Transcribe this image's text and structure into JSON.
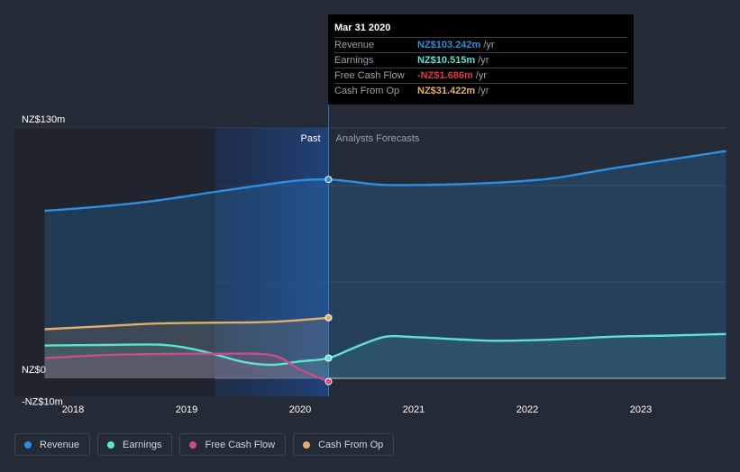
{
  "chart_data": {
    "type": "area",
    "x_ticks": [
      "2018",
      "2019",
      "2020",
      "2021",
      "2022",
      "2023"
    ],
    "y_ticks": [
      {
        "value": 130,
        "label": "NZ$130m"
      },
      {
        "value": 0,
        "label": "NZ$0"
      },
      {
        "value": -10,
        "label": "-NZ$10m"
      }
    ],
    "ylim": [
      -10,
      130
    ],
    "divider_labels": {
      "past": "Past",
      "forecast": "Analysts Forecasts"
    },
    "series": [
      {
        "name": "Revenue",
        "color": "#2d8fe0",
        "points": [
          [
            2017.75,
            87
          ],
          [
            2018.25,
            89.2
          ],
          [
            2018.75,
            92.4
          ],
          [
            2019.25,
            96.8
          ],
          [
            2019.75,
            101
          ],
          [
            2020.0,
            102.8
          ],
          [
            2020.25,
            103.242
          ]
        ],
        "forecast": [
          [
            2020.25,
            103.242
          ],
          [
            2020.5,
            101.8
          ],
          [
            2020.75,
            100.4
          ],
          [
            2021.25,
            100.6
          ],
          [
            2021.75,
            101.6
          ],
          [
            2022.0,
            102.6
          ],
          [
            2022.25,
            104
          ],
          [
            2022.75,
            109
          ],
          [
            2023.25,
            113.5
          ],
          [
            2023.75,
            118
          ]
        ]
      },
      {
        "name": "Earnings",
        "color": "#5ee3d3",
        "points": [
          [
            2017.75,
            17
          ],
          [
            2018.25,
            17.3
          ],
          [
            2018.75,
            17.5
          ],
          [
            2019.0,
            15.8
          ],
          [
            2019.25,
            12.5
          ],
          [
            2019.5,
            8.5
          ],
          [
            2019.75,
            7
          ],
          [
            2020.0,
            8.8
          ],
          [
            2020.25,
            10.515
          ]
        ],
        "forecast": [
          [
            2020.25,
            10.515
          ],
          [
            2020.5,
            16.5
          ],
          [
            2020.75,
            21.6
          ],
          [
            2021.0,
            21.4
          ],
          [
            2021.5,
            19.9
          ],
          [
            2021.75,
            19.5
          ],
          [
            2022.25,
            20.2
          ],
          [
            2022.75,
            21.6
          ],
          [
            2023.25,
            22.2
          ],
          [
            2023.75,
            23
          ]
        ]
      },
      {
        "name": "Free Cash Flow",
        "color": "#c94d8a",
        "points": [
          [
            2017.75,
            10.5
          ],
          [
            2018.25,
            12
          ],
          [
            2018.75,
            12.6
          ],
          [
            2019.25,
            12.7
          ],
          [
            2019.75,
            12
          ],
          [
            2020.0,
            4.5
          ],
          [
            2020.25,
            -1.686
          ]
        ],
        "forecast": []
      },
      {
        "name": "Cash From Op",
        "color": "#e3ad66",
        "points": [
          [
            2017.75,
            25.5
          ],
          [
            2018.25,
            27
          ],
          [
            2018.75,
            28.5
          ],
          [
            2019.25,
            28.9
          ],
          [
            2019.75,
            29.3
          ],
          [
            2020.25,
            31.422
          ]
        ],
        "forecast": []
      }
    ]
  },
  "tooltip": {
    "date": "Mar 31 2020",
    "rows": [
      {
        "label": "Revenue",
        "value": "NZ$103.242m",
        "unit": "/yr",
        "color": "#2d8fe0"
      },
      {
        "label": "Earnings",
        "value": "NZ$10.515m",
        "unit": "/yr",
        "color": "#5ee3d3"
      },
      {
        "label": "Free Cash Flow",
        "value": "-NZ$1.686m",
        "unit": "/yr",
        "color": "#e2383d"
      },
      {
        "label": "Cash From Op",
        "value": "NZ$31.422m",
        "unit": "/yr",
        "color": "#e3ad66"
      }
    ]
  },
  "legend": [
    {
      "label": "Revenue",
      "color": "#2d8fe0"
    },
    {
      "label": "Earnings",
      "color": "#5ee3d3"
    },
    {
      "label": "Free Cash Flow",
      "color": "#c94d8a"
    },
    {
      "label": "Cash From Op",
      "color": "#e3ad66"
    }
  ]
}
